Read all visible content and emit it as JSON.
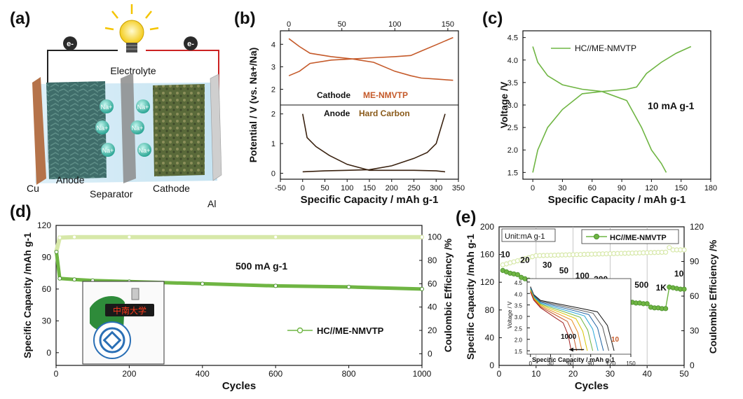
{
  "colors": {
    "green": "#6fb543",
    "green_light": "#d7e8a9",
    "green_dark": "#4a8f2c",
    "brown": "#c55a2a",
    "dark": "#3a2210",
    "copper": "#b5734a",
    "al": "#c9c9c9",
    "wire_red": "#cc2222"
  },
  "panel_a": {
    "label": "(a)",
    "electron": "e-",
    "electrolyte": "Electrolyte",
    "na": "Na+",
    "cu": "Cu",
    "anode": "Anode",
    "separator": "Separator",
    "cathode": "Cathode",
    "al": "Al"
  },
  "panel_b": {
    "label": "(b)",
    "ylabel": "Potential / V (vs. Na+/Na)",
    "xlabel": "Specific Capacity / mAh g-1",
    "top_ticks": [
      "0",
      "50",
      "100",
      "150"
    ],
    "bottom_ticks": [
      "-50",
      "0",
      "50",
      "100",
      "150",
      "200",
      "250",
      "300",
      "350"
    ],
    "upper_yticks": [
      "2",
      "3",
      "4"
    ],
    "lower_yticks": [
      "0",
      "1",
      "2"
    ],
    "cathode_text": "Cathode",
    "cathode_name": "ME-NMVTP",
    "anode_text": "Anode",
    "anode_name": "Hard Carbon"
  },
  "panel_c": {
    "label": "(c)",
    "ylabel": "Voltage /V",
    "xlabel": "Specific Capacity / mAh g-1",
    "xticks": [
      "0",
      "30",
      "60",
      "90",
      "120",
      "150",
      "180"
    ],
    "yticks": [
      "1.5",
      "2.0",
      "2.5",
      "3.0",
      "3.5",
      "4.0",
      "4.5"
    ],
    "legend": "HC//ME-NMVTP",
    "annotation": "10 mA g-1"
  },
  "panel_d": {
    "label": "(d)",
    "ylabel_left": "Specific Capacity /mAh g-1",
    "ylabel_right": "Coulombic Efficiency /%",
    "xlabel": "Cycles",
    "xticks": [
      "0",
      "200",
      "400",
      "600",
      "800",
      "1000"
    ],
    "yticks_left": [
      "0",
      "30",
      "60",
      "90",
      "120"
    ],
    "yticks_right": [
      "0",
      "20",
      "40",
      "60",
      "80",
      "100"
    ],
    "annotation": "500 mA g-1",
    "legend": "HC//ME-NMVTP",
    "inset_sign": "中南大学"
  },
  "panel_e": {
    "label": "(e)",
    "ylabel_left": "Specific Capacity /mAh g-1",
    "ylabel_right": "Coulombic Efficiency /%",
    "xlabel": "Cycles",
    "xticks": [
      "0",
      "10",
      "20",
      "30",
      "40",
      "50"
    ],
    "yticks_left": [
      "0",
      "40",
      "80",
      "120",
      "160",
      "200"
    ],
    "yticks_right": [
      "0",
      "30",
      "60",
      "90",
      "120"
    ],
    "unit": "Unit:mA g-1",
    "legend": "HC//ME-NMVTP",
    "rates": [
      "10",
      "20",
      "30",
      "50",
      "100",
      "200",
      "300",
      "500",
      "1K",
      "10"
    ],
    "inset": {
      "ylabel": "Voltage / V",
      "xlabel": "Specific Capacity / mAh g-1",
      "xticks": [
        "0",
        "30",
        "60",
        "90",
        "120",
        "150"
      ],
      "yticks": [
        "1.5",
        "2.0",
        "2.5",
        "3.0",
        "3.5",
        "4.0",
        "4.5"
      ],
      "left_rate": "1000",
      "right_rate": "10"
    }
  },
  "chart_data": [
    {
      "type": "line",
      "panel": "b",
      "title": "",
      "series": [
        {
          "name": "Cathode ME-NMVTP charge",
          "x": [
            0,
            10,
            20,
            40,
            60,
            80,
            100,
            115,
            125,
            140,
            155
          ],
          "y": [
            2.6,
            2.8,
            3.15,
            3.3,
            3.35,
            3.4,
            3.45,
            3.5,
            3.7,
            4.0,
            4.3
          ]
        },
        {
          "name": "Cathode ME-NMVTP discharge",
          "x": [
            0,
            10,
            20,
            40,
            60,
            80,
            100,
            115,
            125,
            140,
            155
          ],
          "y": [
            4.25,
            3.9,
            3.6,
            3.45,
            3.35,
            3.2,
            2.8,
            2.6,
            2.5,
            2.45,
            2.4
          ]
        },
        {
          "name": "Anode Hard Carbon sodiation",
          "x": [
            0,
            10,
            30,
            60,
            100,
            150,
            200,
            250,
            300,
            320
          ],
          "y": [
            2.0,
            1.2,
            0.9,
            0.6,
            0.3,
            0.1,
            0.1,
            0.1,
            0.08,
            0.05
          ]
        },
        {
          "name": "Anode Hard Carbon desodiation",
          "x": [
            0,
            50,
            100,
            150,
            200,
            250,
            280,
            300,
            320
          ],
          "y": [
            0.05,
            0.08,
            0.1,
            0.12,
            0.25,
            0.5,
            0.7,
            1.0,
            2.0
          ]
        }
      ]
    },
    {
      "type": "line",
      "panel": "c",
      "title": "",
      "xlim": [
        0,
        180
      ],
      "ylim": [
        1.35,
        4.65
      ],
      "series": [
        {
          "name": "HC//ME-NMVTP charge",
          "x": [
            0,
            5,
            15,
            30,
            50,
            70,
            95,
            105,
            115,
            130,
            145,
            160
          ],
          "y": [
            1.5,
            2.0,
            2.5,
            2.9,
            3.25,
            3.3,
            3.35,
            3.4,
            3.7,
            3.95,
            4.15,
            4.3
          ]
        },
        {
          "name": "HC//ME-NMVTP discharge",
          "x": [
            0,
            5,
            15,
            30,
            50,
            70,
            95,
            110,
            120,
            130,
            135
          ],
          "y": [
            4.3,
            3.95,
            3.65,
            3.45,
            3.35,
            3.3,
            3.1,
            2.5,
            2.0,
            1.7,
            1.5
          ]
        }
      ]
    },
    {
      "type": "line",
      "panel": "d",
      "title": "",
      "xlim": [
        0,
        1000
      ],
      "ylim": [
        0,
        120
      ],
      "series": [
        {
          "name": "Specific capacity",
          "x": [
            1,
            10,
            50,
            100,
            200,
            400,
            600,
            800,
            1000
          ],
          "y": [
            95,
            70,
            69,
            68,
            67,
            65,
            63,
            62,
            60
          ]
        },
        {
          "name": "Coulombic efficiency",
          "x": [
            1,
            10,
            50,
            200,
            600,
            1000
          ],
          "y": [
            88,
            99.5,
            100,
            100,
            100,
            100
          ]
        }
      ]
    },
    {
      "type": "line",
      "panel": "e",
      "title": "",
      "xlim": [
        0,
        50
      ],
      "ylim": [
        0,
        200
      ],
      "series": [
        {
          "name": "Specific capacity",
          "x": [
            1,
            2,
            3,
            4,
            5,
            6,
            7,
            8,
            9,
            10,
            11,
            12,
            13,
            14,
            15,
            16,
            17,
            18,
            19,
            20,
            21,
            22,
            23,
            24,
            25,
            26,
            27,
            28,
            29,
            30,
            31,
            32,
            33,
            34,
            35,
            36,
            37,
            38,
            39,
            40,
            41,
            42,
            43,
            44,
            45,
            46,
            47,
            48,
            49,
            50
          ],
          "y": [
            137,
            135,
            133,
            132,
            131,
            127,
            125,
            123,
            122,
            121,
            118,
            117,
            116,
            115,
            114,
            112,
            111,
            110,
            109,
            108,
            103,
            102,
            101,
            101,
            100,
            100,
            99,
            98,
            98,
            97,
            95,
            94,
            93,
            93,
            92,
            91,
            90,
            90,
            89,
            89,
            84,
            83,
            83,
            82,
            82,
            113,
            112,
            111,
            110,
            110
          ]
        },
        {
          "name": "Coulombic efficiency",
          "x": [
            1,
            5,
            10,
            15,
            20,
            25,
            30,
            35,
            40,
            45,
            46,
            50
          ],
          "y": [
            87,
            94,
            95,
            96,
            96,
            97,
            97,
            97,
            97,
            98,
            102,
            100
          ]
        }
      ]
    }
  ]
}
